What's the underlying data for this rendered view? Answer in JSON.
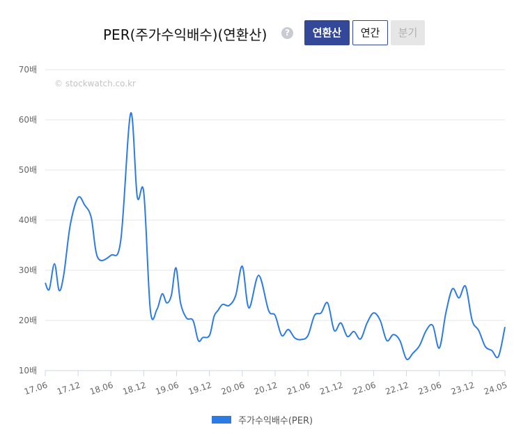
{
  "header": {
    "title": "PER(주가수익배수)(연환산)",
    "help_icon": "?",
    "buttons": {
      "annualized": "연환산",
      "annual": "연간",
      "quarterly": "분기"
    }
  },
  "colors": {
    "line": "#2c7be5",
    "active_button": "#34489a",
    "grid": "#e6e6e6"
  },
  "chart_data": {
    "type": "line",
    "watermark": "© stockwatch.co.kr",
    "y_ticks": [
      "10배",
      "20배",
      "30배",
      "40배",
      "50배",
      "60배",
      "70배"
    ],
    "y_tick_values": [
      10,
      20,
      30,
      40,
      50,
      60,
      70
    ],
    "ylim": [
      10,
      70
    ],
    "x_ticks": [
      "17.06",
      "17.12",
      "18.06",
      "18.12",
      "19.06",
      "19.12",
      "20.06",
      "20.12",
      "21.06",
      "21.12",
      "22.06",
      "22.12",
      "23.06",
      "23.12",
      "24.05"
    ],
    "grid": true,
    "legend_position": "bottom",
    "series": [
      {
        "name": "주가수익배수(PER)",
        "x": [
          0,
          0.12,
          0.28,
          0.42,
          0.56,
          0.76,
          1.0,
          1.2,
          1.4,
          1.6,
          2.0,
          2.3,
          2.6,
          2.8,
          3.0,
          3.2,
          3.4,
          3.56,
          3.7,
          3.84,
          3.98,
          4.12,
          4.3,
          4.5,
          4.66,
          4.8,
          5.0,
          5.14,
          5.26,
          5.4,
          5.6,
          5.8,
          6.0,
          6.2,
          6.5,
          6.8,
          7.0,
          7.2,
          7.4,
          7.6,
          7.8,
          8.0,
          8.2,
          8.4,
          8.6,
          8.8,
          9.0,
          9.2,
          9.4,
          9.6,
          9.8,
          10.0,
          10.2,
          10.4,
          10.6,
          10.8,
          11.0,
          11.2,
          11.4,
          11.6,
          11.8,
          12.0,
          12.2,
          12.4,
          12.6,
          12.8,
          13.0,
          13.2,
          13.4,
          13.6,
          13.8,
          14.0
        ],
        "y": [
          27.5,
          26.2,
          31.3,
          26.0,
          29.0,
          39.0,
          44.5,
          43.0,
          40.5,
          32.5,
          33.0,
          36.0,
          61.3,
          44.7,
          45.5,
          22.0,
          22.2,
          25.3,
          23.5,
          25.0,
          30.5,
          23.5,
          20.5,
          20.0,
          16.0,
          16.6,
          17.0,
          20.8,
          22.0,
          23.2,
          23.0,
          25.0,
          30.8,
          22.5,
          29.0,
          22.0,
          21.0,
          17.0,
          18.2,
          16.5,
          16.2,
          17.0,
          21.0,
          21.5,
          23.5,
          18.0,
          19.5,
          16.8,
          17.8,
          16.3,
          19.5,
          21.5,
          20.0,
          16.0,
          17.2,
          16.0,
          12.3,
          13.5,
          15.0,
          18.0,
          19.0,
          14.5,
          21.5,
          26.3,
          24.5,
          26.8,
          20.0,
          18.0,
          14.8,
          14.0,
          12.8,
          18.7
        ]
      }
    ]
  }
}
